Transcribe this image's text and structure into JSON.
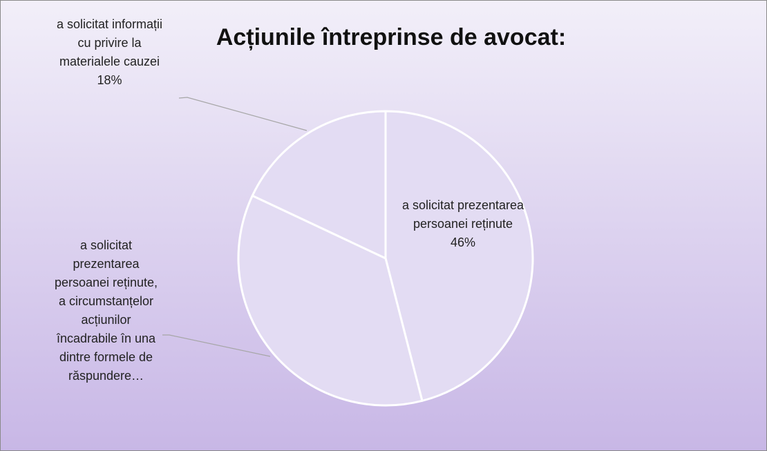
{
  "chart_data": {
    "type": "pie",
    "title": "Acțiunile întreprinse de avocat:",
    "categories": [
      "a solicitat prezentarea persoanei reținute",
      "a solicitat prezentarea persoanei reținute, a circumstanțelor acțiunilor încadrabile în una dintre formele de răspundere…",
      "a solicitat informații cu privire la materialele cauzei"
    ],
    "values": [
      46,
      36,
      18
    ],
    "value_labels": [
      "46%",
      null,
      "18%"
    ],
    "color": "#e3dcf3"
  }
}
